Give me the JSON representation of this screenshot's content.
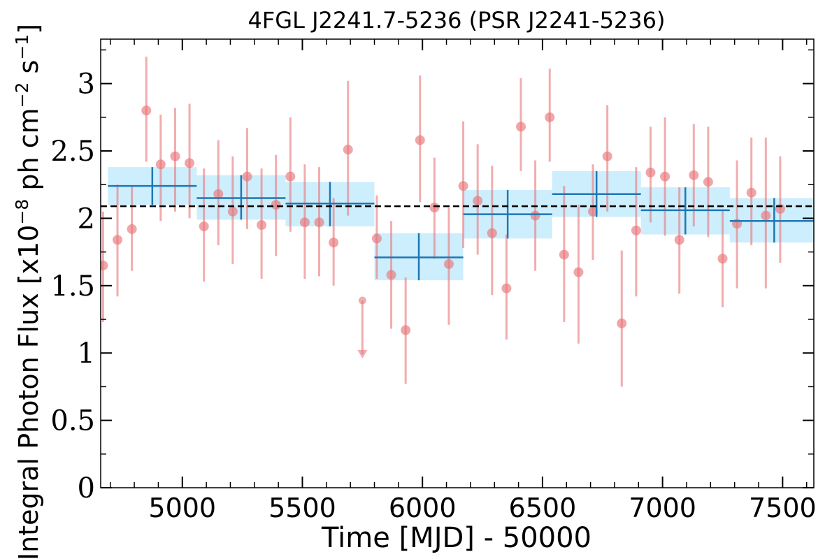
{
  "chart_data": {
    "type": "scatter",
    "title": "4FGL J2241.7-5236 (PSR J2241-5236)",
    "xlabel": "Time [MJD] - 50000",
    "ylabel": {
      "text": "Integral Photon Flux [x10",
      "exp1": "−8",
      "mid": " ph cm",
      "exp2": "−2",
      "mid2": " s",
      "exp3": "−1",
      "end": "]"
    },
    "xlim": [
      4660,
      7630
    ],
    "ylim": [
      0,
      3.33
    ],
    "xticks": [
      {
        "value": 5000,
        "label": "5000"
      },
      {
        "value": 5500,
        "label": "5500"
      },
      {
        "value": 6000,
        "label": "6000"
      },
      {
        "value": 6500,
        "label": "6500"
      },
      {
        "value": 7000,
        "label": "7000"
      },
      {
        "value": 7500,
        "label": "7500"
      }
    ],
    "yticks": [
      {
        "value": 0,
        "label": "0"
      },
      {
        "value": 0.5,
        "label": "0.5"
      },
      {
        "value": 1,
        "label": "1"
      },
      {
        "value": 1.5,
        "label": "1.5"
      },
      {
        "value": 2,
        "label": "2"
      },
      {
        "value": 2.5,
        "label": "2.5"
      },
      {
        "value": 3,
        "label": "3"
      }
    ],
    "x_minor_step": 100,
    "y_minor_step": 0.25,
    "mean_flux": 2.09,
    "colors": {
      "points": "#e8777a",
      "bins_fill": "#cdeefc",
      "bins_line": "#1f77b4",
      "mean_line": "#000000"
    },
    "fine_bins": [
      {
        "x": 4670,
        "y": 1.65,
        "lo": 1.23,
        "hi": 2.05
      },
      {
        "x": 4730,
        "y": 1.84,
        "lo": 1.42,
        "hi": 2.25
      },
      {
        "x": 4790,
        "y": 1.92,
        "lo": 1.61,
        "hi": 2.24
      },
      {
        "x": 4850,
        "y": 2.8,
        "lo": 2.42,
        "hi": 3.2
      },
      {
        "x": 4910,
        "y": 2.4,
        "lo": 1.98,
        "hi": 2.77
      },
      {
        "x": 4970,
        "y": 2.46,
        "lo": 2.05,
        "hi": 2.82
      },
      {
        "x": 5030,
        "y": 2.41,
        "lo": 2.0,
        "hi": 2.85
      },
      {
        "x": 5090,
        "y": 1.94,
        "lo": 1.53,
        "hi": 2.37
      },
      {
        "x": 5150,
        "y": 2.18,
        "lo": 1.8,
        "hi": 2.58
      },
      {
        "x": 5210,
        "y": 2.05,
        "lo": 1.66,
        "hi": 2.46
      },
      {
        "x": 5270,
        "y": 2.31,
        "lo": 1.92,
        "hi": 2.67
      },
      {
        "x": 5330,
        "y": 1.95,
        "lo": 1.55,
        "hi": 2.37
      },
      {
        "x": 5390,
        "y": 2.1,
        "lo": 1.72,
        "hi": 2.47
      },
      {
        "x": 5450,
        "y": 2.31,
        "lo": 1.9,
        "hi": 2.75
      },
      {
        "x": 5510,
        "y": 1.97,
        "lo": 1.55,
        "hi": 2.4
      },
      {
        "x": 5570,
        "y": 1.97,
        "lo": 1.57,
        "hi": 2.38
      },
      {
        "x": 5630,
        "y": 1.82,
        "lo": 1.5,
        "hi": 2.15
      },
      {
        "x": 5690,
        "y": 2.51,
        "lo": 2.02,
        "hi": 3.02
      },
      {
        "x": 5750,
        "y": 1.39,
        "ul": true,
        "arrow_to": 0.96
      },
      {
        "x": 5810,
        "y": 1.85,
        "lo": 1.55,
        "hi": 2.17
      },
      {
        "x": 5870,
        "y": 1.58,
        "lo": 1.18,
        "hi": 1.98
      },
      {
        "x": 5930,
        "y": 1.17,
        "lo": 0.77,
        "hi": 1.56
      },
      {
        "x": 5990,
        "y": 2.58,
        "lo": 2.12,
        "hi": 3.06
      },
      {
        "x": 6050,
        "y": 2.08,
        "lo": 1.7,
        "hi": 2.45
      },
      {
        "x": 6110,
        "y": 1.66,
        "lo": 1.21,
        "hi": 2.08
      },
      {
        "x": 6170,
        "y": 2.24,
        "lo": 1.78,
        "hi": 2.72
      },
      {
        "x": 6230,
        "y": 2.13,
        "lo": 1.73,
        "hi": 2.55
      },
      {
        "x": 6290,
        "y": 1.89,
        "lo": 1.43,
        "hi": 2.39
      },
      {
        "x": 6350,
        "y": 1.48,
        "lo": 1.1,
        "hi": 1.88
      },
      {
        "x": 6410,
        "y": 2.68,
        "lo": 2.35,
        "hi": 3.04
      },
      {
        "x": 6470,
        "y": 2.02,
        "lo": 1.61,
        "hi": 2.43
      },
      {
        "x": 6530,
        "y": 2.75,
        "lo": 2.42,
        "hi": 3.11
      },
      {
        "x": 6590,
        "y": 1.73,
        "lo": 1.23,
        "hi": 2.24
      },
      {
        "x": 6650,
        "y": 1.6,
        "lo": 1.07,
        "hi": 2.1
      },
      {
        "x": 6710,
        "y": 2.05,
        "lo": 1.69,
        "hi": 2.4
      },
      {
        "x": 6770,
        "y": 2.46,
        "lo": 2.05,
        "hi": 2.84
      },
      {
        "x": 6830,
        "y": 1.22,
        "lo": 0.75,
        "hi": 1.76
      },
      {
        "x": 6890,
        "y": 1.91,
        "lo": 1.42,
        "hi": 2.38
      },
      {
        "x": 6950,
        "y": 2.34,
        "lo": 1.97,
        "hi": 2.68
      },
      {
        "x": 7010,
        "y": 2.31,
        "lo": 1.87,
        "hi": 2.75
      },
      {
        "x": 7070,
        "y": 1.84,
        "lo": 1.44,
        "hi": 2.23
      },
      {
        "x": 7130,
        "y": 2.32,
        "lo": 1.94,
        "hi": 2.7
      },
      {
        "x": 7190,
        "y": 2.27,
        "lo": 1.86,
        "hi": 2.68
      },
      {
        "x": 7250,
        "y": 1.7,
        "lo": 1.34,
        "hi": 2.06
      },
      {
        "x": 7310,
        "y": 1.96,
        "lo": 1.48,
        "hi": 2.43
      },
      {
        "x": 7370,
        "y": 2.19,
        "lo": 1.8,
        "hi": 2.6
      },
      {
        "x": 7430,
        "y": 2.02,
        "lo": 1.48,
        "hi": 2.6
      },
      {
        "x": 7490,
        "y": 2.07,
        "lo": 1.67,
        "hi": 2.46
      }
    ],
    "coarse_bins": [
      {
        "x0": 4690,
        "x1": 5060,
        "y": 2.24,
        "lo": 2.1,
        "hi": 2.38
      },
      {
        "x0": 5060,
        "x1": 5430,
        "y": 2.15,
        "lo": 1.99,
        "hi": 2.32
      },
      {
        "x0": 5430,
        "x1": 5800,
        "y": 2.11,
        "lo": 1.94,
        "hi": 2.27
      },
      {
        "x0": 5800,
        "x1": 6170,
        "y": 1.71,
        "lo": 1.54,
        "hi": 1.89
      },
      {
        "x0": 6170,
        "x1": 6540,
        "y": 2.03,
        "lo": 1.85,
        "hi": 2.21
      },
      {
        "x0": 6540,
        "x1": 6910,
        "y": 2.18,
        "lo": 2.01,
        "hi": 2.35
      },
      {
        "x0": 6910,
        "x1": 7280,
        "y": 2.06,
        "lo": 1.88,
        "hi": 2.23
      },
      {
        "x0": 7280,
        "x1": 7650,
        "y": 1.98,
        "lo": 1.82,
        "hi": 2.15
      }
    ]
  }
}
